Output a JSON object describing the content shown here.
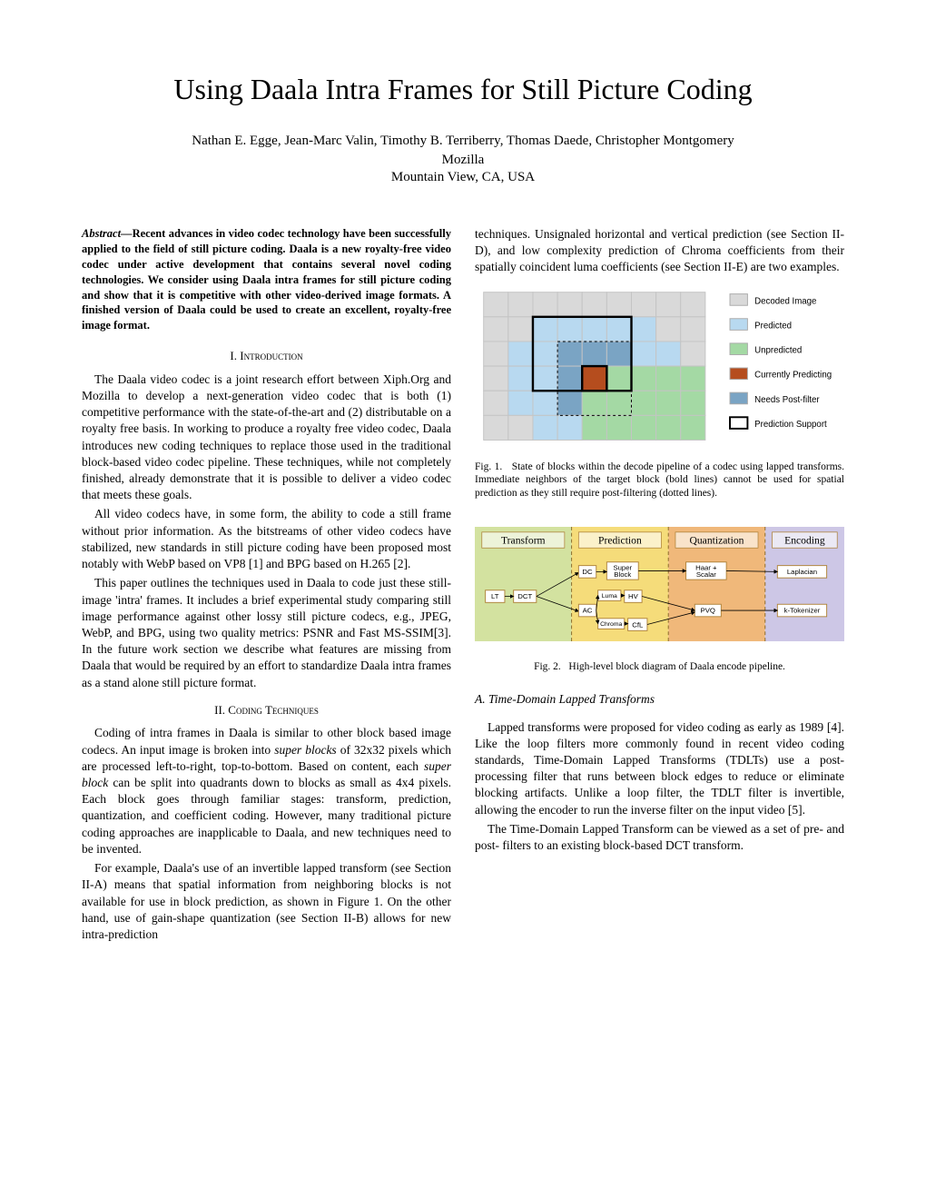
{
  "title": "Using Daala Intra Frames for Still Picture Coding",
  "authors": "Nathan E. Egge, Jean-Marc Valin, Timothy B. Terriberry, Thomas Daede, Christopher Montgomery",
  "affiliation1": "Mozilla",
  "affiliation2": "Mountain View, CA, USA",
  "abstract_label": "Abstract—",
  "abstract_text": "Recent advances in video codec technology have been successfully applied to the field of still picture coding. Daala is a new royalty-free video codec under active development that contains several novel coding technologies. We consider using Daala intra frames for still picture coding and show that it is competitive with other video-derived image formats. A finished version of Daala could be used to create an excellent, royalty-free image format.",
  "section1": "I.  Introduction",
  "para1": "The Daala video codec is a joint research effort between Xiph.Org and Mozilla to develop a next-generation video codec that is both (1) competitive performance with the state-of-the-art and (2) distributable on a royalty free basis. In working to produce a royalty free video codec, Daala introduces new coding techniques to replace those used in the traditional block-based video codec pipeline. These techniques, while not completely finished, already demonstrate that it is possible to deliver a video codec that meets these goals.",
  "para2": "All video codecs have, in some form, the ability to code a still frame without prior information. As the bitstreams of other video codecs have stabilized, new standards in still picture coding have been proposed most notably with WebP based on VP8 [1] and BPG based on H.265 [2].",
  "para3": "This paper outlines the techniques used in Daala to code just these still-image 'intra' frames. It includes a brief experimental study comparing still image performance against other lossy still picture codecs, e.g., JPEG, WebP, and BPG, using two quality metrics: PSNR and Fast MS-SSIM[3]. In the future work section we describe what features are missing from Daala that would be required by an effort to standardize Daala intra frames as a stand alone still picture format.",
  "section2": "II.  Coding Techniques",
  "para4_a": "Coding of intra frames in Daala is similar to other block based image codecs. An input image is broken into ",
  "para4_super": "super blocks",
  "para4_b": " of 32x32 pixels which are processed left-to-right, top-to-bottom. Based on content, each ",
  "para4_super2": "super block",
  "para4_c": " can be split into quadrants down to blocks as small as 4x4 pixels. Each block goes through familiar stages: transform, prediction, quantization, and coefficient coding. However, many traditional picture coding approaches are inapplicable to Daala, and new techniques need to be invented.",
  "para5": "For example, Daala's use of an invertible lapped transform (see Section II-A) means that spatial information from neighboring blocks is not available for use in block prediction, as shown in Figure 1. On the other hand, use of gain-shape quantization (see Section II-B) allows for new intra-prediction",
  "para6": "techniques. Unsignaled horizontal and vertical prediction (see Section II-D), and low complexity prediction of Chroma coefficients from their spatially coincident luma coefficients (see Section II-E) are two examples.",
  "fig1": {
    "colors": {
      "decoded": "#d9d9d9",
      "predicted": "#b8d9f0",
      "unpredicted": "#a4d9a4",
      "current": "#b54d1e",
      "postfilter": "#7aa4c4",
      "support": "#ffffff",
      "grid": "#c4c4c4",
      "bold": "#000000"
    },
    "legend": {
      "decoded": "Decoded Image",
      "predicted": "Predicted",
      "unpredicted": "Unpredicted",
      "current": "Currently Predicting",
      "postfilter": "Needs Post-filter",
      "support": "Prediction Support"
    },
    "caption_num": "Fig. 1.",
    "caption": "State of blocks within the decode pipeline of a codec using lapped transforms. Immediate neighbors of the target block (bold lines) cannot be used for spatial prediction as they still require post-filtering (dotted lines)."
  },
  "fig2": {
    "cols": {
      "transform": {
        "label": "Transform",
        "bg": "#d3e2a0"
      },
      "prediction": {
        "label": "Prediction",
        "bg": "#f5dc7a"
      },
      "quantization": {
        "label": "Quantization",
        "bg": "#f0b87a"
      },
      "encoding": {
        "label": "Encoding",
        "bg": "#cdc7e6"
      }
    },
    "boxes": {
      "lt": "LT",
      "dct": "DCT",
      "dc": "DC",
      "ac": "AC",
      "super": "Super\nBlock",
      "luma": "Luma",
      "hv": "HV",
      "chroma": "Chroma",
      "cfl": "CfL",
      "haar": "Haar +\nScalar",
      "pvq": "PVQ",
      "laplacian": "Laplacian",
      "ktoken": "k-Tokenizer"
    },
    "caption_num": "Fig. 2.",
    "caption": "High-level block diagram of Daala encode pipeline."
  },
  "subsectionA": "A. Time-Domain Lapped Transforms",
  "para7": "Lapped transforms were proposed for video coding as early as 1989 [4]. Like the loop filters more commonly found in recent video coding standards, Time-Domain Lapped Transforms (TDLTs) use a post-processing filter that runs between block edges to reduce or eliminate blocking artifacts. Unlike a loop filter, the TDLT filter is invertible, allowing the encoder to run the inverse filter on the input video [5].",
  "para8": "The Time-Domain Lapped Transform can be viewed as a set of pre- and post- filters to an existing block-based DCT transform."
}
